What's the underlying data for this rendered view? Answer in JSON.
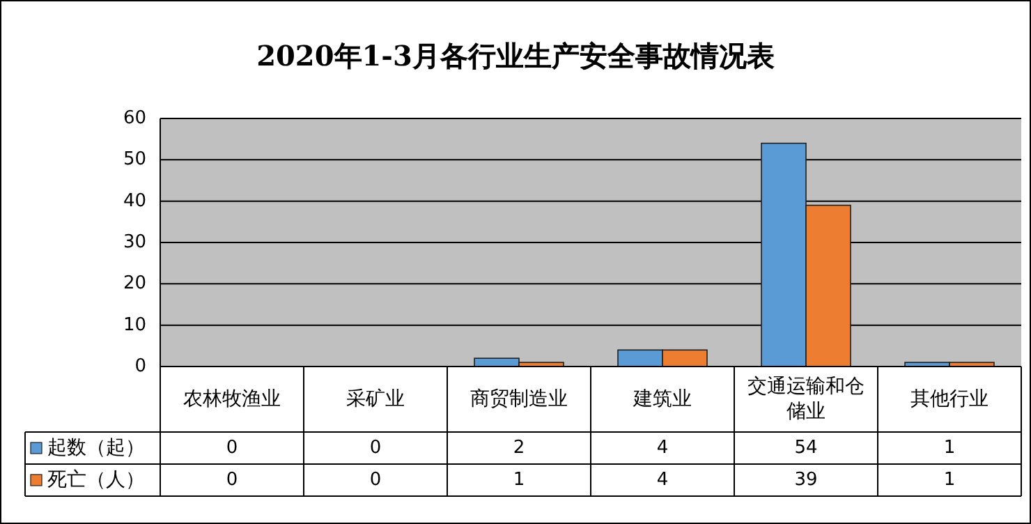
{
  "chart_data": {
    "type": "bar",
    "title": "2020年1-3月各行业生产安全事故情况表",
    "categories": [
      "农林牧渔业",
      "采矿业",
      "商贸制造业",
      "建筑业",
      "交通运输和仓储业",
      "其他行业"
    ],
    "series": [
      {
        "name": "起数（起）",
        "color": "#5b9bd5",
        "values": [
          0,
          0,
          2,
          4,
          54,
          1
        ]
      },
      {
        "name": "死亡（人）",
        "color": "#ed7d31",
        "values": [
          0,
          0,
          1,
          4,
          39,
          1
        ]
      }
    ],
    "ylim": [
      0,
      60
    ],
    "yticks": [
      0,
      10,
      20,
      30,
      40,
      50,
      60
    ],
    "grid": "y",
    "data_labels": true,
    "legend": "bottom left"
  }
}
